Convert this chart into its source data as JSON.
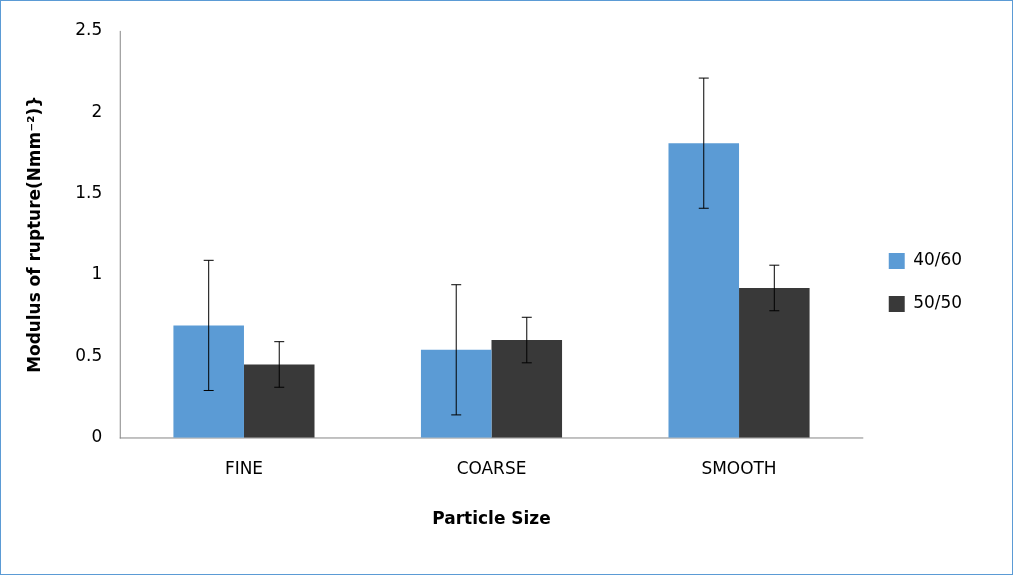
{
  "chart_data": {
    "type": "bar",
    "xlabel": "Particle Size",
    "ylabel": "Modulus of rupture(Nmm⁻²)}",
    "categories": [
      "FINE",
      "COARSE",
      "SMOOTH"
    ],
    "series": [
      {
        "name": "40/60",
        "color": "#5b9bd5",
        "values": [
          0.69,
          0.54,
          1.81
        ],
        "errors": [
          0.4,
          0.4,
          0.4
        ]
      },
      {
        "name": "50/50",
        "color": "#393939",
        "values": [
          0.45,
          0.6,
          0.92
        ],
        "errors": [
          0.14,
          0.14,
          0.14
        ]
      }
    ],
    "ylim": [
      0,
      2.5
    ],
    "yticks": [
      0,
      0.5,
      1,
      1.5,
      2,
      2.5
    ],
    "grid": false,
    "legend": "right"
  }
}
